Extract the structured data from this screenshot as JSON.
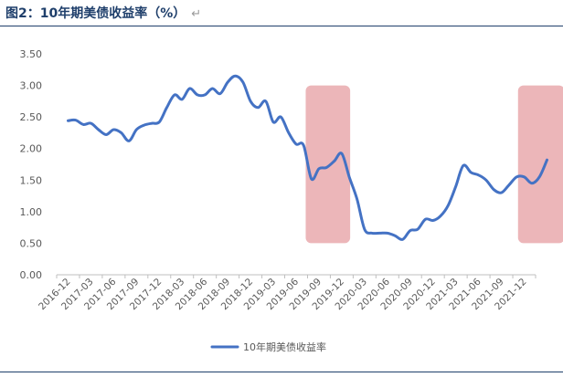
{
  "figure": {
    "title": "图2：10年期美债收益率（%）",
    "return_mark": "↵"
  },
  "chart_data": {
    "type": "line",
    "title": "",
    "xlabel": "",
    "ylabel": "",
    "ylim": [
      0,
      3.5
    ],
    "yticks": [
      0.0,
      0.5,
      1.0,
      1.5,
      2.0,
      2.5,
      3.0,
      3.5
    ],
    "ytick_labels": [
      "0.00",
      "0.50",
      "1.00",
      "1.50",
      "2.00",
      "2.50",
      "3.00",
      "3.50"
    ],
    "xtick_labels": [
      "2016-12",
      "2017-03",
      "2017-06",
      "2017-09",
      "2017-12",
      "2018-03",
      "2018-06",
      "2018-09",
      "2018-12",
      "2019-03",
      "2019-06",
      "2019-09",
      "2019-12",
      "2020-03",
      "2020-06",
      "2020-09",
      "2020-12",
      "2021-03",
      "2021-06",
      "2021-09",
      "2021-12"
    ],
    "grid": false,
    "legend": "bottom-center",
    "series": [
      {
        "name": "10年期美债收益率",
        "color": "#4472c4",
        "points": [
          [
            0,
            2.44
          ],
          [
            0.33,
            2.45
          ],
          [
            0.67,
            2.38
          ],
          [
            1,
            2.4
          ],
          [
            1.33,
            2.3
          ],
          [
            1.67,
            2.22
          ],
          [
            2,
            2.3
          ],
          [
            2.33,
            2.25
          ],
          [
            2.67,
            2.12
          ],
          [
            3,
            2.3
          ],
          [
            3.33,
            2.37
          ],
          [
            3.67,
            2.4
          ],
          [
            4,
            2.42
          ],
          [
            4.33,
            2.65
          ],
          [
            4.67,
            2.85
          ],
          [
            5,
            2.78
          ],
          [
            5.33,
            2.95
          ],
          [
            5.67,
            2.85
          ],
          [
            6,
            2.85
          ],
          [
            6.33,
            2.95
          ],
          [
            6.67,
            2.87
          ],
          [
            7,
            3.05
          ],
          [
            7.33,
            3.15
          ],
          [
            7.67,
            3.05
          ],
          [
            8,
            2.75
          ],
          [
            8.33,
            2.65
          ],
          [
            8.67,
            2.75
          ],
          [
            9,
            2.42
          ],
          [
            9.33,
            2.5
          ],
          [
            9.67,
            2.25
          ],
          [
            10,
            2.07
          ],
          [
            10.33,
            2.05
          ],
          [
            10.67,
            1.52
          ],
          [
            11,
            1.68
          ],
          [
            11.33,
            1.7
          ],
          [
            11.67,
            1.8
          ],
          [
            12,
            1.92
          ],
          [
            12.33,
            1.55
          ],
          [
            12.67,
            1.2
          ],
          [
            13,
            0.72
          ],
          [
            13.33,
            0.66
          ],
          [
            13.67,
            0.66
          ],
          [
            14,
            0.66
          ],
          [
            14.33,
            0.62
          ],
          [
            14.67,
            0.56
          ],
          [
            15,
            0.7
          ],
          [
            15.33,
            0.72
          ],
          [
            15.67,
            0.88
          ],
          [
            16,
            0.86
          ],
          [
            16.33,
            0.93
          ],
          [
            16.67,
            1.1
          ],
          [
            17,
            1.4
          ],
          [
            17.33,
            1.73
          ],
          [
            17.67,
            1.62
          ],
          [
            18,
            1.58
          ],
          [
            18.33,
            1.5
          ],
          [
            18.67,
            1.35
          ],
          [
            19,
            1.3
          ],
          [
            19.33,
            1.42
          ],
          [
            19.67,
            1.55
          ],
          [
            20,
            1.55
          ],
          [
            20.33,
            1.45
          ],
          [
            20.67,
            1.55
          ],
          [
            21,
            1.82
          ]
        ]
      }
    ],
    "highlight_bands": [
      {
        "x_from": 10.42,
        "x_to": 12.37,
        "y_from": 0.5,
        "y_to": 3.0,
        "color": "#eaaeb1"
      },
      {
        "x_from": 19.73,
        "x_to": 21.77,
        "y_from": 0.5,
        "y_to": 3.0,
        "color": "#eaaeb1"
      }
    ]
  }
}
